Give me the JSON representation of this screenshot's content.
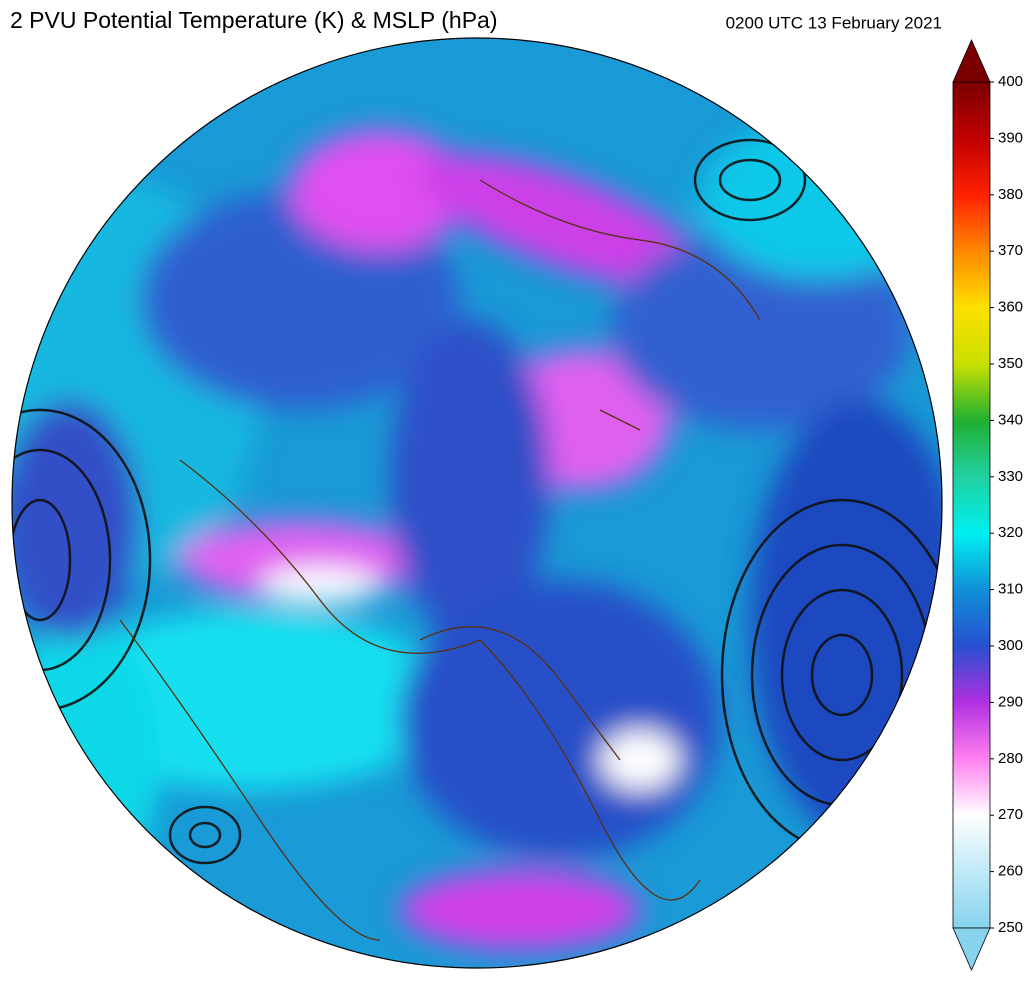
{
  "title": "2 PVU Potential Temperature (K) & MSLP (hPa)",
  "valid_time": "0200 UTC 13 February 2021",
  "colorbar": {
    "lim": [
      250,
      400
    ],
    "ticks": [
      250,
      260,
      270,
      280,
      290,
      300,
      310,
      320,
      330,
      340,
      350,
      360,
      370,
      380,
      390,
      400
    ],
    "colors": [
      "#87d3ee",
      "#bfe9f7",
      "#ffffff",
      "#ff80f0",
      "#b030e0",
      "#2850d0",
      "#1090d8",
      "#00f0f0",
      "#20d0a0",
      "#20b030",
      "#c8e000",
      "#ffe000",
      "#ff8800",
      "#ff2000",
      "#c00000",
      "#7a0000"
    ]
  }
}
